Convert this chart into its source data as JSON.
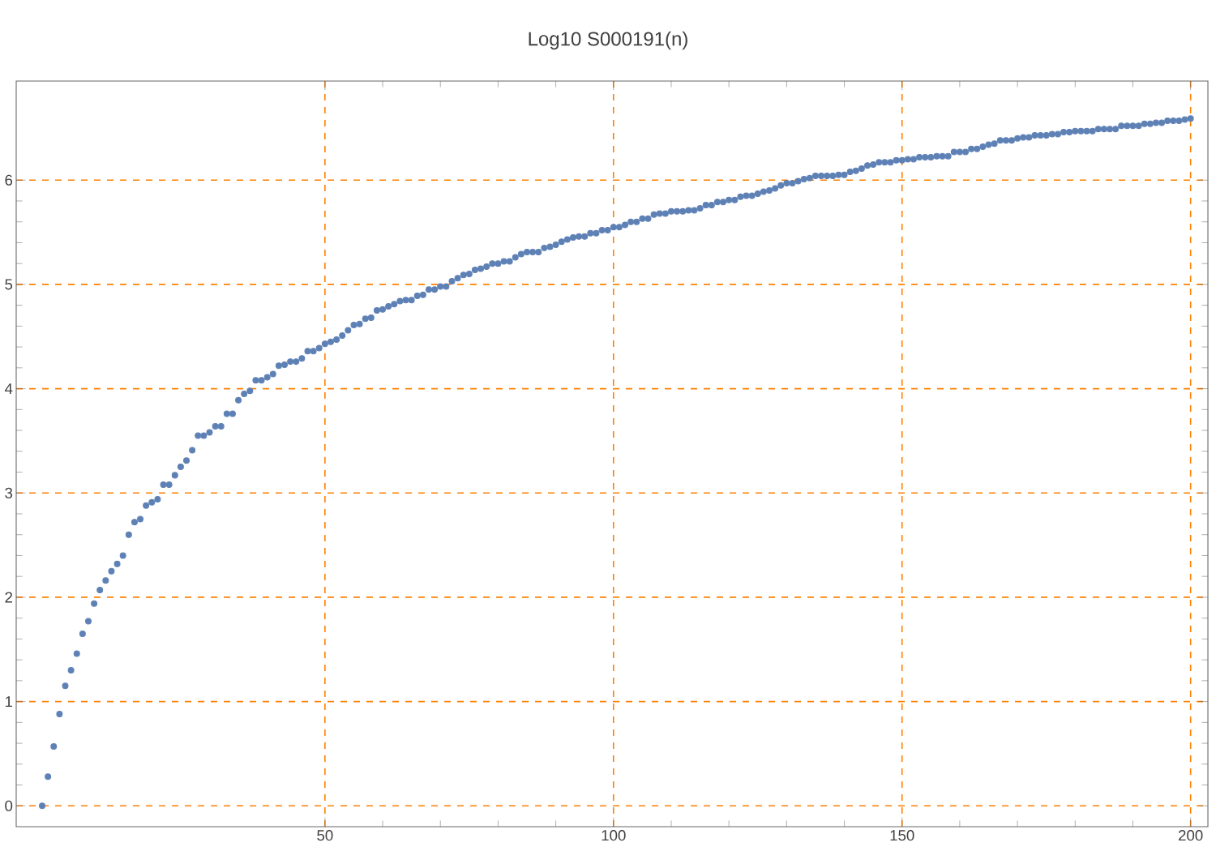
{
  "chart_data": {
    "type": "scatter",
    "title": "Log10 S000191(n)",
    "x": [
      1,
      2,
      3,
      4,
      5,
      6,
      7,
      8,
      9,
      10,
      11,
      12,
      13,
      14,
      15,
      16,
      17,
      18,
      19,
      20,
      21,
      22,
      23,
      24,
      25,
      26,
      27,
      28,
      29,
      30,
      31,
      32,
      33,
      34,
      35,
      36,
      37,
      38,
      39,
      40,
      41,
      42,
      43,
      44,
      45,
      46,
      47,
      48,
      49,
      50,
      51,
      52,
      53,
      54,
      55,
      56,
      57,
      58,
      59,
      60,
      61,
      62,
      63,
      64,
      65,
      66,
      67,
      68,
      69,
      70,
      71,
      72,
      73,
      74,
      75,
      76,
      77,
      78,
      79,
      80,
      81,
      82,
      83,
      84,
      85,
      86,
      87,
      88,
      89,
      90,
      91,
      92,
      93,
      94,
      95,
      96,
      97,
      98,
      99,
      100,
      101,
      102,
      103,
      104,
      105,
      106,
      107,
      108,
      109,
      110,
      111,
      112,
      113,
      114,
      115,
      116,
      117,
      118,
      119,
      120,
      121,
      122,
      123,
      124,
      125,
      126,
      127,
      128,
      129,
      130,
      131,
      132,
      133,
      134,
      135,
      136,
      137,
      138,
      139,
      140,
      141,
      142,
      143,
      144,
      145,
      146,
      147,
      148,
      149,
      150,
      151,
      152,
      153,
      154,
      155,
      156,
      157,
      158,
      159,
      160,
      161,
      162,
      163,
      164,
      165,
      166,
      167,
      168,
      169,
      170,
      171,
      172,
      173,
      174,
      175,
      176,
      177,
      178,
      179,
      180,
      181,
      182,
      183,
      184,
      185,
      186,
      187,
      188,
      189,
      190,
      191,
      192,
      193,
      194,
      195,
      196,
      197,
      198,
      199,
      200
    ],
    "series": [
      {
        "color": "#5e81b5",
        "values": [
          0,
          0.28,
          0.57,
          0.88,
          1.15,
          1.3,
          1.46,
          1.65,
          1.77,
          1.94,
          2.07,
          2.16,
          2.25,
          2.32,
          2.4,
          2.6,
          2.72,
          2.75,
          2.88,
          2.91,
          2.94,
          3.08,
          3.08,
          3.17,
          3.25,
          3.31,
          3.41,
          3.55,
          3.55,
          3.58,
          3.64,
          3.64,
          3.76,
          3.76,
          3.89,
          3.95,
          3.98,
          4.08,
          4.08,
          4.11,
          4.14,
          4.22,
          4.23,
          4.26,
          4.26,
          4.29,
          4.36,
          4.36,
          4.39,
          4.43,
          4.45,
          4.47,
          4.51,
          4.56,
          4.61,
          4.62,
          4.67,
          4.68,
          4.75,
          4.76,
          4.79,
          4.81,
          4.84,
          4.85,
          4.85,
          4.89,
          4.9,
          4.95,
          4.95,
          4.98,
          4.98,
          5.03,
          5.06,
          5.09,
          5.1,
          5.14,
          5.15,
          5.17,
          5.2,
          5.2,
          5.22,
          5.22,
          5.26,
          5.29,
          5.31,
          5.31,
          5.31,
          5.35,
          5.36,
          5.38,
          5.41,
          5.43,
          5.45,
          5.46,
          5.46,
          5.49,
          5.49,
          5.52,
          5.52,
          5.55,
          5.55,
          5.57,
          5.6,
          5.6,
          5.63,
          5.63,
          5.67,
          5.68,
          5.68,
          5.7,
          5.7,
          5.7,
          5.71,
          5.71,
          5.73,
          5.76,
          5.76,
          5.79,
          5.79,
          5.81,
          5.81,
          5.84,
          5.85,
          5.85,
          5.87,
          5.89,
          5.9,
          5.92,
          5.95,
          5.97,
          5.97,
          5.99,
          6.01,
          6.02,
          6.04,
          6.04,
          6.04,
          6.04,
          6.05,
          6.05,
          6.08,
          6.09,
          6.11,
          6.14,
          6.15,
          6.17,
          6.17,
          6.17,
          6.19,
          6.19,
          6.2,
          6.2,
          6.22,
          6.22,
          6.22,
          6.23,
          6.23,
          6.23,
          6.27,
          6.27,
          6.27,
          6.3,
          6.3,
          6.32,
          6.34,
          6.35,
          6.38,
          6.38,
          6.38,
          6.4,
          6.41,
          6.41,
          6.43,
          6.43,
          6.43,
          6.44,
          6.44,
          6.46,
          6.46,
          6.47,
          6.47,
          6.47,
          6.47,
          6.49,
          6.49,
          6.49,
          6.49,
          6.52,
          6.52,
          6.52,
          6.52,
          6.54,
          6.54,
          6.55,
          6.55,
          6.57,
          6.57,
          6.57,
          6.58,
          6.59
        ]
      }
    ],
    "xlim": [
      -3.5,
      203
    ],
    "ylim": [
      -0.2,
      6.95
    ],
    "xticks": [
      50,
      100,
      150,
      200
    ],
    "yticks": [
      0,
      1,
      2,
      3,
      4,
      5,
      6
    ],
    "grid": true
  }
}
